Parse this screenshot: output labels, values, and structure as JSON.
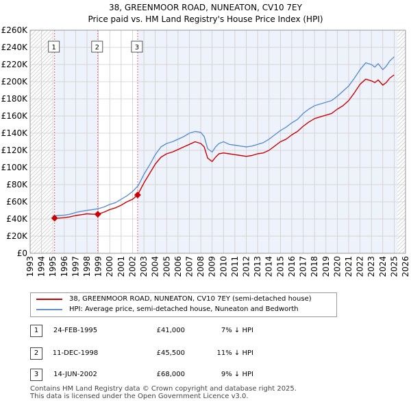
{
  "title_line1": "38, GREENMOOR ROAD, NUNEATON, CV10 7EY",
  "title_line2": "Price paid vs. HM Land Registry's House Price Index (HPI)",
  "colors": {
    "property_line": "#cc0000",
    "hpi_line": "#5b8fd0",
    "shade": "#eef2fb",
    "grid": "#cccccc",
    "marker_outline": "#cc0000"
  },
  "legend": [
    {
      "label": "38, GREENMOOR ROAD, NUNEATON, CV10 7EY (semi-detached house)",
      "color": "#cc0000"
    },
    {
      "label": "HPI: Average price, semi-detached house, Nuneaton and Bedworth",
      "color": "#5b8fd0"
    }
  ],
  "transactions": [
    {
      "num": "1",
      "date": "24-FEB-1995",
      "price": "£41,000",
      "hpi": "7% ↓ HPI"
    },
    {
      "num": "2",
      "date": "11-DEC-1998",
      "price": "£45,500",
      "hpi": "11% ↓ HPI"
    },
    {
      "num": "3",
      "date": "14-JUN-2002",
      "price": "£68,000",
      "hpi": "9% ↓ HPI"
    }
  ],
  "footer": [
    "Contains HM Land Registry data © Crown copyright and database right 2025.",
    "This data is licensed under the Open Government Licence v3.0."
  ],
  "chart_data": {
    "type": "line",
    "xlim": [
      1993,
      2026
    ],
    "ylim": [
      0,
      260000
    ],
    "yticks": [
      0,
      20000,
      40000,
      60000,
      80000,
      100000,
      120000,
      140000,
      160000,
      180000,
      200000,
      220000,
      240000,
      260000
    ],
    "ytick_labels": [
      "£0",
      "£20K",
      "£40K",
      "£60K",
      "£80K",
      "£100K",
      "£120K",
      "£140K",
      "£160K",
      "£180K",
      "£200K",
      "£220K",
      "£240K",
      "£260K"
    ],
    "xticks": [
      1993,
      1994,
      1995,
      1996,
      1997,
      1998,
      1999,
      2000,
      2001,
      2002,
      2003,
      2004,
      2005,
      2006,
      2007,
      2008,
      2009,
      2010,
      2011,
      2012,
      2013,
      2014,
      2015,
      2016,
      2017,
      2018,
      2019,
      2020,
      2021,
      2022,
      2023,
      2024,
      2025,
      2026
    ],
    "xtick_labels": [
      "1993",
      "1994",
      "1995",
      "1996",
      "1997",
      "1998",
      "1999",
      "2000",
      "2001",
      "2002",
      "2003",
      "2004",
      "2005",
      "2006",
      "2007",
      "2008",
      "2009",
      "2010",
      "2011",
      "2012",
      "2013",
      "2014",
      "2015",
      "2016",
      "2017",
      "2018",
      "2019",
      "2020",
      "2021",
      "2022",
      "2023",
      "2024",
      "2025",
      "2026"
    ],
    "shaded_ranges": [
      [
        1995.15,
        1998.95
      ],
      [
        2002.45,
        2025.3
      ]
    ],
    "hatched_ranges": [
      [
        1993,
        1995
      ],
      [
        2025.3,
        2026
      ]
    ],
    "vlines": [
      {
        "x": 1995.15,
        "label": "1"
      },
      {
        "x": 1998.95,
        "label": "2"
      },
      {
        "x": 2002.45,
        "label": "3"
      }
    ],
    "sale_points": [
      {
        "x": 1995.15,
        "y": 41000
      },
      {
        "x": 1998.95,
        "y": 45500
      },
      {
        "x": 2002.45,
        "y": 68000
      }
    ],
    "series": [
      {
        "name": "HPI: Average price, semi-detached house, Nuneaton and Bedworth",
        "color": "#5b8fd0",
        "x": [
          1995.0,
          1995.5,
          1996.0,
          1996.5,
          1997.0,
          1997.5,
          1998.0,
          1998.5,
          1999.0,
          1999.5,
          2000.0,
          2000.5,
          2001.0,
          2001.5,
          2002.0,
          2002.5,
          2003.0,
          2003.5,
          2004.0,
          2004.5,
          2005.0,
          2005.5,
          2006.0,
          2006.5,
          2007.0,
          2007.5,
          2008.0,
          2008.3,
          2008.6,
          2009.0,
          2009.3,
          2009.6,
          2010.0,
          2010.5,
          2011.0,
          2011.5,
          2012.0,
          2012.5,
          2013.0,
          2013.5,
          2014.0,
          2014.5,
          2015.0,
          2015.5,
          2016.0,
          2016.5,
          2017.0,
          2017.5,
          2018.0,
          2018.5,
          2019.0,
          2019.5,
          2020.0,
          2020.5,
          2021.0,
          2021.5,
          2022.0,
          2022.5,
          2023.0,
          2023.3,
          2023.6,
          2024.0,
          2024.3,
          2024.6,
          2025.0
        ],
        "values": [
          43500,
          44000,
          44500,
          45500,
          47500,
          49000,
          50000,
          51000,
          52000,
          54000,
          57000,
          59000,
          63000,
          67000,
          72000,
          79000,
          92000,
          103000,
          115000,
          124000,
          128000,
          130000,
          133000,
          136000,
          140000,
          142000,
          141000,
          136000,
          122000,
          118000,
          124000,
          128000,
          130000,
          127000,
          126000,
          125000,
          124000,
          125000,
          127000,
          129000,
          133000,
          138000,
          143000,
          147000,
          152000,
          156000,
          163000,
          168000,
          172000,
          174000,
          176000,
          178000,
          183000,
          189000,
          195000,
          204000,
          214000,
          222000,
          220000,
          217000,
          221000,
          214000,
          218000,
          224000,
          229000
        ]
      },
      {
        "name": "38, GREENMOOR ROAD, NUNEATON, CV10 7EY (semi-detached house)",
        "color": "#cc0000",
        "x": [
          1995.15,
          1995.5,
          1996.0,
          1996.5,
          1997.0,
          1997.5,
          1998.0,
          1998.5,
          1998.95,
          1999.5,
          2000.0,
          2000.5,
          2001.0,
          2001.5,
          2002.0,
          2002.45,
          2003.0,
          2003.5,
          2004.0,
          2004.5,
          2005.0,
          2005.5,
          2006.0,
          2006.5,
          2007.0,
          2007.5,
          2008.0,
          2008.3,
          2008.6,
          2009.0,
          2009.3,
          2009.6,
          2010.0,
          2010.5,
          2011.0,
          2011.5,
          2012.0,
          2012.5,
          2013.0,
          2013.5,
          2014.0,
          2014.5,
          2015.0,
          2015.5,
          2016.0,
          2016.5,
          2017.0,
          2017.5,
          2018.0,
          2018.5,
          2019.0,
          2019.5,
          2020.0,
          2020.5,
          2021.0,
          2021.5,
          2022.0,
          2022.5,
          2023.0,
          2023.3,
          2023.6,
          2024.0,
          2024.3,
          2024.6,
          2025.0
        ],
        "values": [
          41000,
          41000,
          41500,
          42500,
          44000,
          45000,
          46000,
          45500,
          45500,
          48000,
          51000,
          53000,
          56000,
          60000,
          63000,
          68000,
          82000,
          93000,
          104000,
          112000,
          116000,
          118000,
          121000,
          124000,
          127000,
          130000,
          128000,
          124000,
          111000,
          107000,
          112000,
          116000,
          117000,
          116000,
          115000,
          114000,
          113000,
          114000,
          116000,
          117000,
          120000,
          125000,
          130000,
          133000,
          138000,
          142000,
          148000,
          153000,
          157000,
          159000,
          161000,
          163000,
          168000,
          172000,
          178000,
          187000,
          197000,
          203000,
          201000,
          199000,
          202000,
          196000,
          199000,
          204000,
          208000
        ]
      }
    ]
  }
}
